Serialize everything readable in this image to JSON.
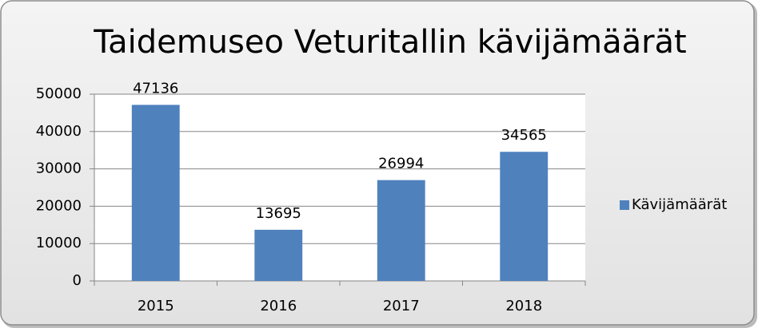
{
  "chart_data": {
    "type": "bar",
    "title": "Taidemuseo Veturitallin kävijämäärät",
    "categories": [
      "2015",
      "2016",
      "2017",
      "2018"
    ],
    "series": [
      {
        "name": "Kävijämäärät",
        "color": "#4f81bd",
        "values": [
          47136,
          13695,
          26994,
          34565
        ]
      }
    ],
    "ylim": [
      0,
      50000
    ],
    "yticks": [
      0,
      10000,
      20000,
      30000,
      40000,
      50000
    ],
    "grid": true,
    "legend": "right"
  }
}
